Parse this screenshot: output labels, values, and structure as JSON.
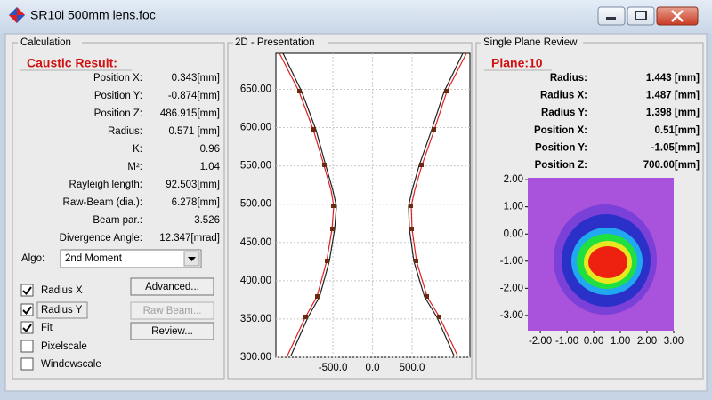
{
  "window": {
    "title": "SR10i 500mm lens.foc"
  },
  "calculation": {
    "group": "Calculation",
    "heading": "Caustic Result:",
    "rows": [
      {
        "label": "Position X:",
        "value": "0.343[mm]"
      },
      {
        "label": "Position Y:",
        "value": "-0.874[mm]"
      },
      {
        "label": "Position Z:",
        "value": "486.915[mm]"
      },
      {
        "label": "Radius:",
        "value": "0.571 [mm]"
      },
      {
        "label": "K:",
        "value": "0.96"
      },
      {
        "label": "M²:",
        "value": "1.04"
      },
      {
        "label": "Rayleigh length:",
        "value": "92.503[mm]"
      },
      {
        "label": "Raw-Beam (dia.):",
        "value": "6.278[mm]"
      },
      {
        "label": "Beam par.:",
        "value": "3.526"
      },
      {
        "label": "Divergence Angle:",
        "value": "12.347[mrad]"
      }
    ],
    "algo": {
      "label": "Algo:",
      "value": "2nd Moment"
    },
    "checkboxes": [
      {
        "label": "Radius X",
        "checked": true
      },
      {
        "label": "Radius Y",
        "checked": true
      },
      {
        "label": "Fit",
        "checked": true
      },
      {
        "label": "Pixelscale",
        "checked": false
      },
      {
        "label": "Windowscale",
        "checked": false
      }
    ],
    "buttons": [
      {
        "label": "Advanced...",
        "enabled": true
      },
      {
        "label": "Raw Beam...",
        "enabled": false
      },
      {
        "label": "Review...",
        "enabled": true
      }
    ]
  },
  "presentation": {
    "group": "2D - Presentation",
    "ylim": [
      300,
      697
    ],
    "yticks": [
      {
        "value": 300,
        "label": "300.00"
      },
      {
        "value": 350,
        "label": "350.00"
      },
      {
        "value": 400,
        "label": "400.00"
      },
      {
        "value": 450,
        "label": "450.00"
      },
      {
        "value": 500,
        "label": "500.00"
      },
      {
        "value": 550,
        "label": "550.00"
      },
      {
        "value": 600,
        "label": "600.00"
      },
      {
        "value": 650,
        "label": "650.00"
      }
    ],
    "xlim": [
      -1220,
      1230
    ],
    "xticks": [
      {
        "value": -500,
        "label": "-500.0"
      },
      {
        "value": 0,
        "label": "0.0"
      },
      {
        "value": 500,
        "label": "500.0"
      }
    ]
  },
  "plane_review": {
    "group": "Single Plane Review",
    "heading": "Plane:10",
    "rows": [
      {
        "label": "Radius:",
        "value": "1.443 [mm]"
      },
      {
        "label": "Radius X:",
        "value": "1.487 [mm]"
      },
      {
        "label": "Radius Y:",
        "value": "1.398 [mm]"
      },
      {
        "label": "Position X:",
        "value": "0.51[mm]"
      },
      {
        "label": "Position Y:",
        "value": "-1.05[mm]"
      },
      {
        "label": "Position Z:",
        "value": "700.00[mm]"
      }
    ],
    "xlim": [
      -2.47,
      3.0
    ],
    "ylim": [
      -3.56,
      2.07
    ],
    "xticks": [
      {
        "value": -2,
        "label": "-2.00"
      },
      {
        "value": -1,
        "label": "-1.00"
      },
      {
        "value": 0,
        "label": "0.00"
      },
      {
        "value": 1,
        "label": "1.00"
      },
      {
        "value": 2,
        "label": "2.00"
      },
      {
        "value": 3,
        "label": "3.00"
      }
    ],
    "yticks": [
      {
        "value": 2,
        "label": "2.00"
      },
      {
        "value": 1,
        "label": "1.00"
      },
      {
        "value": 0,
        "label": "0.00"
      },
      {
        "value": -1,
        "label": "-1.00"
      },
      {
        "value": -2,
        "label": "-2.00"
      },
      {
        "value": -3,
        "label": "-3.00"
      }
    ]
  }
}
